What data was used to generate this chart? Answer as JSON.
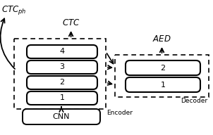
{
  "fig_width": 3.02,
  "fig_height": 1.92,
  "dpi": 100,
  "bg_color": "#ffffff",
  "encoder_layers": [
    "1",
    "2",
    "3",
    "4"
  ],
  "decoder_layers": [
    "1",
    "2"
  ],
  "label_ctc_ph": "$\\mathit{CTC}_{\\mathit{ph}}$",
  "label_ctc": "$\\mathit{CTC}$",
  "label_aed": "$\\mathit{AED}$",
  "label_encoder": "Encoder",
  "label_decoder": "Decoder",
  "label_cnn": "CNN"
}
